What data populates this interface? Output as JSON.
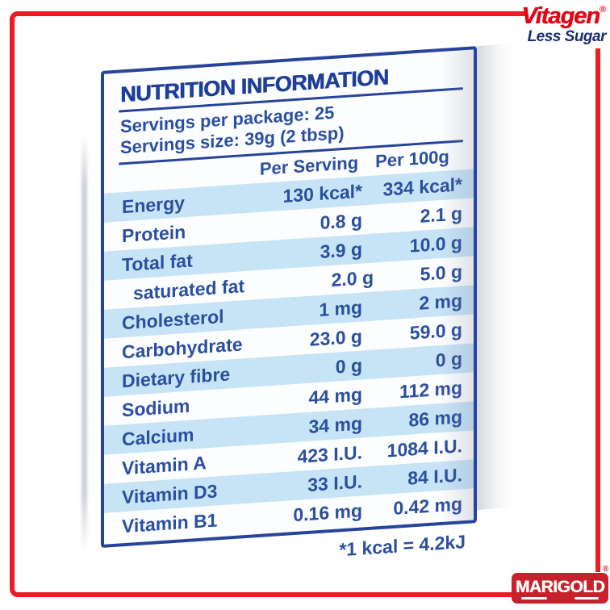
{
  "brand": {
    "vitagen": "Vitagen",
    "vitagen_registered": "®",
    "tagline": "Less Sugar",
    "marigold": "MARIGOLD",
    "marigold_registered": "®"
  },
  "panel": {
    "title": "NUTRITION INFORMATION",
    "servings_per_package": "Servings per package: 25",
    "serving_size": "Servings size: 39g (2 tbsp)",
    "col_label": "",
    "col_per_serving": "Per Serving",
    "col_per_100g": "Per 100g",
    "footnote": "*1 kcal = 4.2kJ",
    "rows": [
      {
        "label": "Energy",
        "per_serving": "130 kcal*",
        "per_100g": "334 kcal*"
      },
      {
        "label": "Protein",
        "per_serving": "0.8 g",
        "per_100g": "2.1 g"
      },
      {
        "label": "Total fat",
        "per_serving": "3.9 g",
        "per_100g": "10.0 g"
      },
      {
        "label": "saturated fat",
        "per_serving": "2.0 g",
        "per_100g": "5.0 g"
      },
      {
        "label": "Cholesterol",
        "per_serving": "1 mg",
        "per_100g": "2 mg"
      },
      {
        "label": "Carbohydrate",
        "per_serving": "23.0 g",
        "per_100g": "59.0 g"
      },
      {
        "label": "Dietary fibre",
        "per_serving": "0 g",
        "per_100g": "0 g"
      },
      {
        "label": "Sodium",
        "per_serving": "44 mg",
        "per_100g": "112 mg"
      },
      {
        "label": "Calcium",
        "per_serving": "34 mg",
        "per_100g": "86 mg"
      },
      {
        "label": "Vitamin A",
        "per_serving": "423 I.U.",
        "per_100g": "1084 I.U."
      },
      {
        "label": "Vitamin D3",
        "per_serving": "33 I.U.",
        "per_100g": "84 I.U."
      },
      {
        "label": "Vitamin B1",
        "per_serving": "0.16 mg",
        "per_100g": "0.42 mg"
      }
    ]
  },
  "colors": {
    "frame_red": "#ed1b24",
    "vitagen_red": "#e30617",
    "tagline_navy": "#1c2c6e",
    "panel_border_blue": "#27449b",
    "text_blue": "#2b4f9f",
    "stripe_blue": "#c7e4f6",
    "marigold_red": "#c5222b"
  }
}
